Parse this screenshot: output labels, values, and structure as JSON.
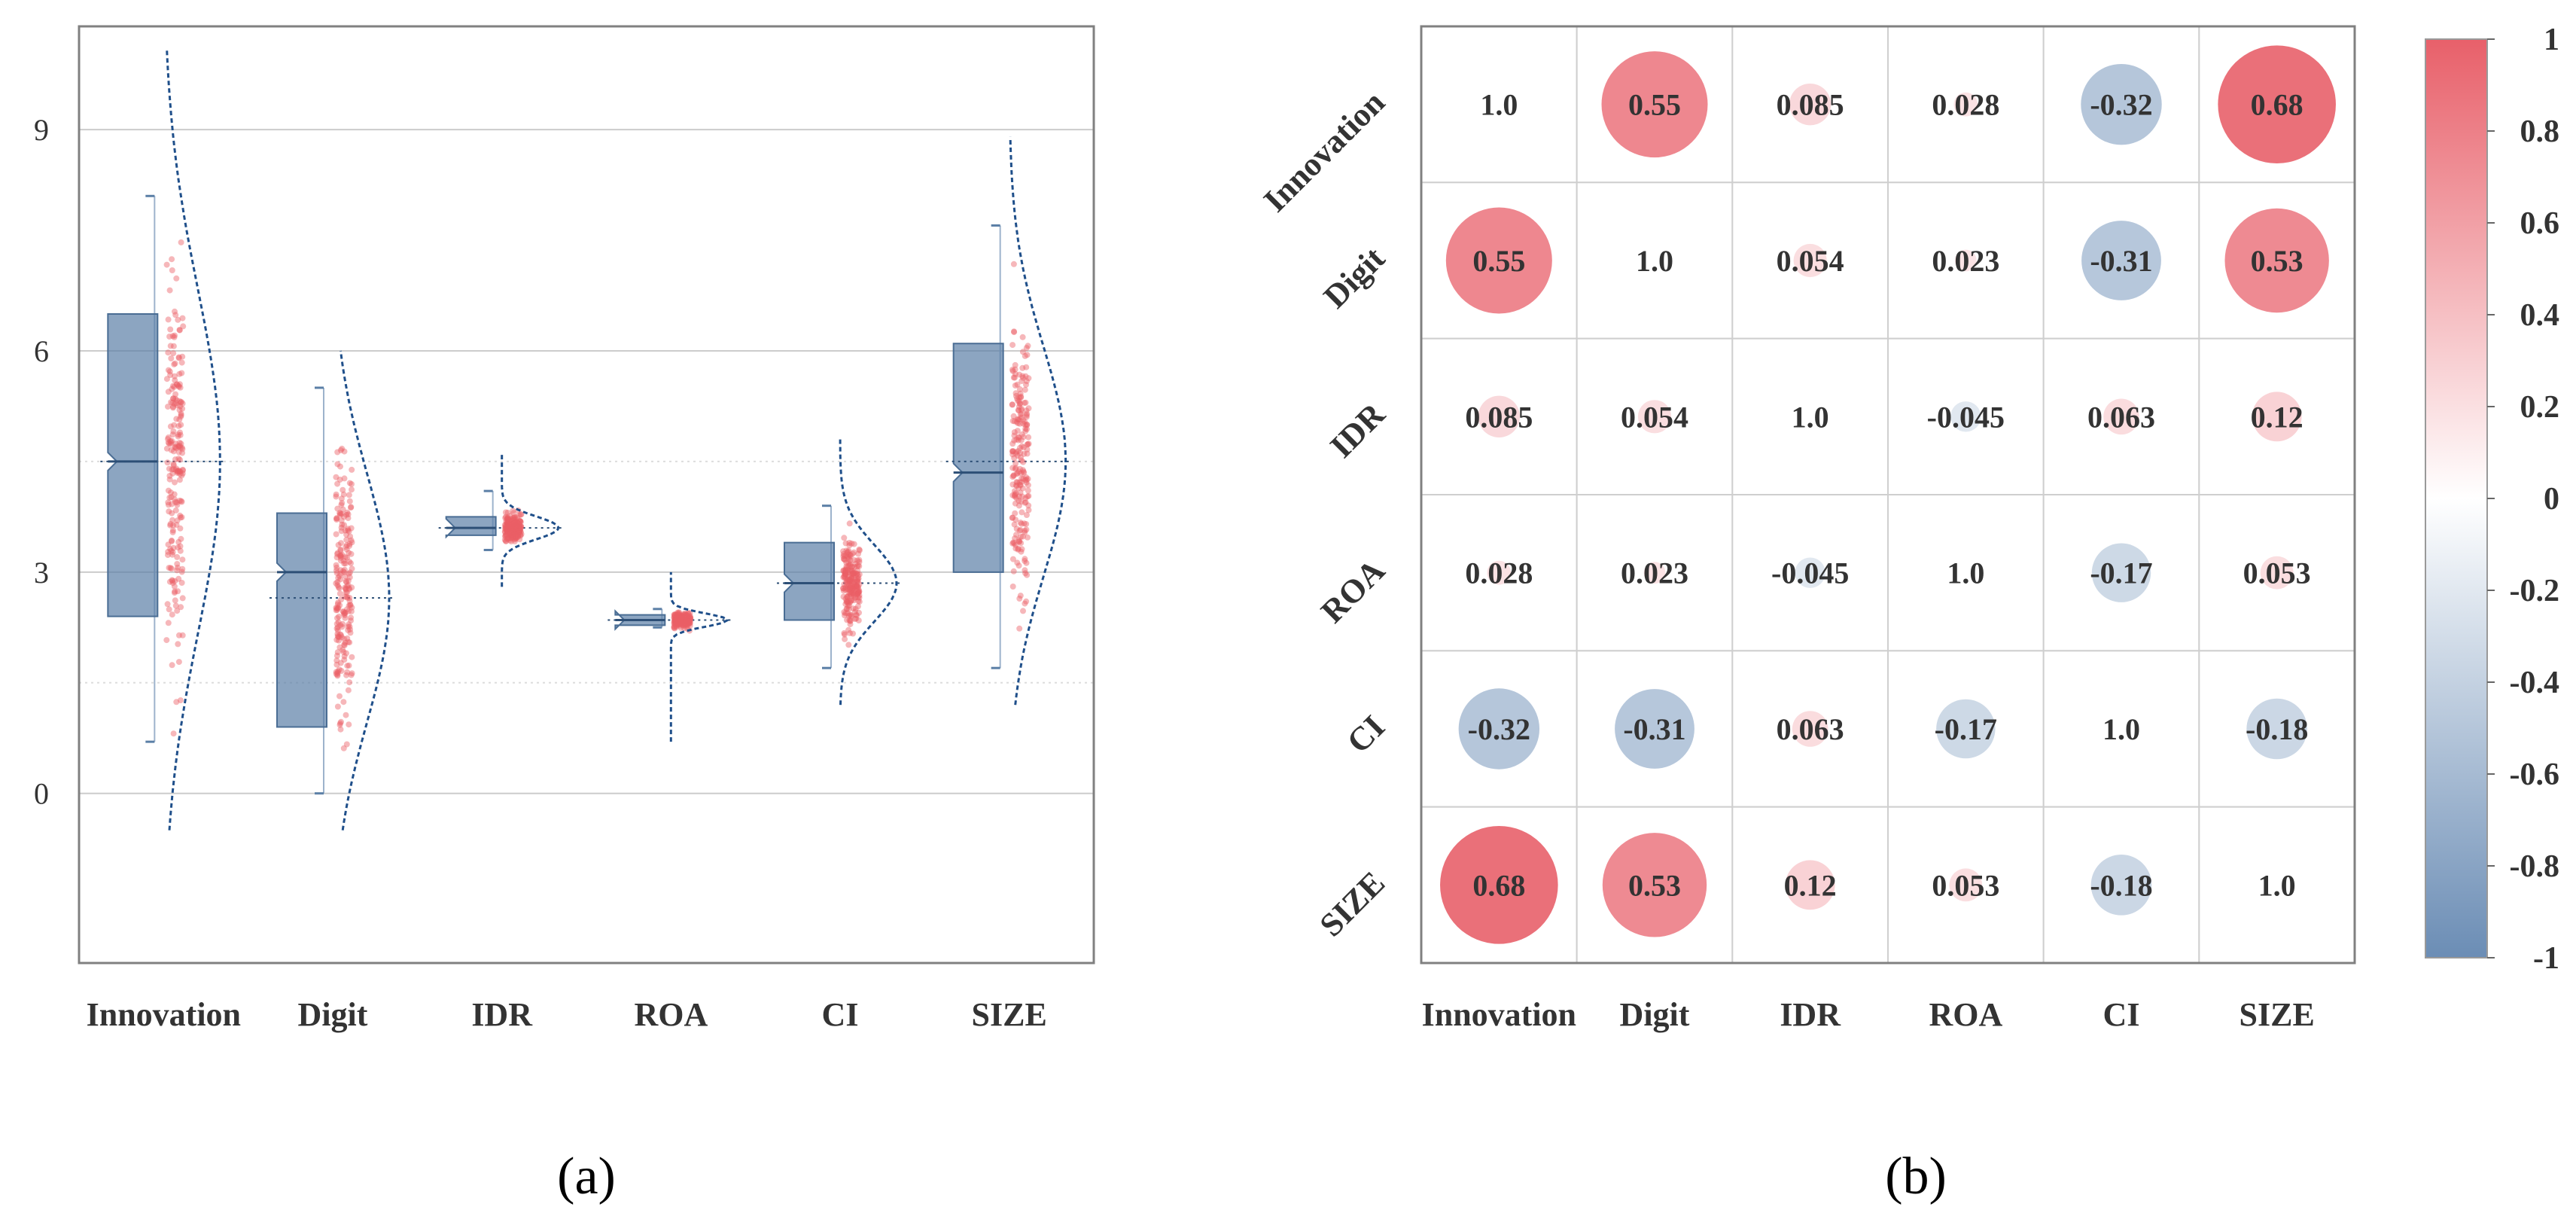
{
  "chart_data": [
    {
      "panel": "(a)",
      "type": "raincloud",
      "categories": [
        "Innovation",
        "Digit",
        "IDR",
        "ROA",
        "CI",
        "SIZE"
      ],
      "ylim": [
        -2.3,
        10.4
      ],
      "yticks": [
        0,
        3,
        6,
        9
      ],
      "grid": true,
      "colors": {
        "box": "#5b7fa6",
        "points": "#ec5f66",
        "density": "#1f4f8a",
        "grid": "#cccccc"
      },
      "stats": [
        {
          "name": "Innovation",
          "min": 0.7,
          "q1": 2.4,
          "median": 4.5,
          "q3": 6.5,
          "max": 8.1,
          "mean": 4.5,
          "sd": 1.8,
          "data_min": 0.0,
          "data_max": 9.6
        },
        {
          "name": "Digit",
          "min": 0.0,
          "q1": 0.9,
          "median": 3.0,
          "q3": 3.8,
          "max": 5.5,
          "mean": 2.65,
          "sd": 1.3,
          "data_min": 0.0,
          "data_max": 5.5
        },
        {
          "name": "IDR",
          "min": 3.3,
          "q1": 3.5,
          "median": 3.6,
          "q3": 3.75,
          "max": 4.1,
          "mean": 3.6,
          "sd": 0.12,
          "data_min": 3.3,
          "data_max": 4.1
        },
        {
          "name": "ROA",
          "min": 2.25,
          "q1": 2.28,
          "median": 2.35,
          "q3": 2.42,
          "max": 2.5,
          "mean": 2.35,
          "sd": 0.07,
          "data_min": 1.2,
          "data_max": 2.5
        },
        {
          "name": "CI",
          "min": 1.7,
          "q1": 2.35,
          "median": 2.85,
          "q3": 3.4,
          "max": 3.9,
          "mean": 2.85,
          "sd": 0.4,
          "data_min": 1.7,
          "data_max": 4.3
        },
        {
          "name": "SIZE",
          "min": 1.7,
          "q1": 3.0,
          "median": 4.35,
          "q3": 6.1,
          "max": 7.7,
          "mean": 4.5,
          "sd": 1.2,
          "data_min": 1.7,
          "data_max": 8.4
        }
      ],
      "title": "",
      "xlabel": "",
      "ylabel": ""
    },
    {
      "panel": "(b)",
      "type": "heatmap",
      "labels": [
        "Innovation",
        "Digit",
        "IDR",
        "ROA",
        "CI",
        "SIZE"
      ],
      "matrix": [
        [
          1.0,
          0.55,
          0.085,
          0.028,
          -0.32,
          0.68
        ],
        [
          0.55,
          1.0,
          0.054,
          0.023,
          -0.31,
          0.53
        ],
        [
          0.085,
          0.054,
          1.0,
          -0.045,
          0.063,
          0.12
        ],
        [
          0.028,
          0.023,
          -0.045,
          1.0,
          -0.17,
          0.053
        ],
        [
          -0.32,
          -0.31,
          0.063,
          -0.17,
          1.0,
          -0.18
        ],
        [
          0.68,
          0.53,
          0.12,
          0.053,
          -0.18,
          1.0
        ]
      ],
      "cell_text": [
        [
          "1.0",
          "0.55",
          "0.085",
          "0.028",
          "-0.32",
          "0.68"
        ],
        [
          "0.55",
          "1.0",
          "0.054",
          "0.023",
          "-0.31",
          "0.53"
        ],
        [
          "0.085",
          "0.054",
          "1.0",
          "-0.045",
          "0.063",
          "0.12"
        ],
        [
          "0.028",
          "0.023",
          "-0.045",
          "1.0",
          "-0.17",
          "0.053"
        ],
        [
          "-0.32",
          "-0.31",
          "0.063",
          "-0.17",
          "1.0",
          "-0.18"
        ],
        [
          "0.68",
          "0.53",
          "0.12",
          "0.053",
          "-0.18",
          "1.0"
        ]
      ],
      "colorbar": {
        "range": [
          -1,
          1
        ],
        "ticks": [
          "1",
          "0.8",
          "0.6",
          "0.4",
          "0.2",
          "0",
          "-0.2",
          "-0.4",
          "-0.6",
          "-0.8",
          "-1"
        ],
        "colors": {
          "positive": "#e8606a",
          "zero": "#ffffff",
          "negative": "#6b8db5"
        }
      },
      "title": "",
      "xlabel": "",
      "ylabel": ""
    }
  ],
  "captions": {
    "a": "(a)",
    "b": "(b)"
  }
}
